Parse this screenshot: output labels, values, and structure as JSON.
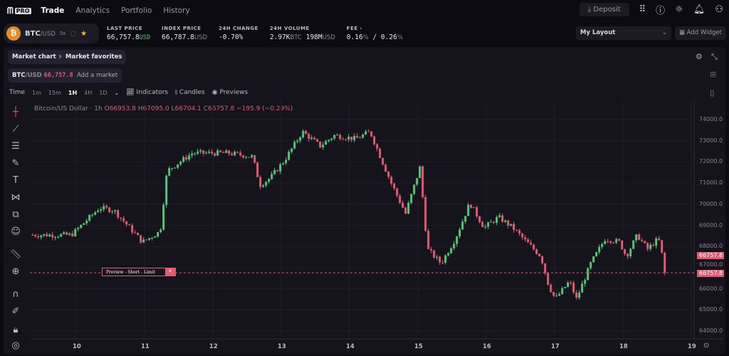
{
  "nav": {
    "logo": "PRO",
    "items": [
      "Trade",
      "Analytics",
      "Portfolio",
      "History"
    ],
    "deposit": "Deposit"
  },
  "ticker": {
    "pair_base": "BTC",
    "pair_quote": "/USD",
    "leverage": "5x"
  },
  "stats": {
    "last_price_label": "LAST PRICE",
    "last_price": "66,757.8",
    "index_label": "INDEX PRICE",
    "index_price": "66,787.8",
    "change_label": "24H CHANGE",
    "change": "-0.70",
    "volume_label": "24H VOLUME",
    "vol_btc": "2.97K",
    "vol_usd": "198M",
    "fee_label": "FEE",
    "fee_maker": "0.16",
    "fee_taker": "0.26",
    "usd": "USD",
    "btc": "BTC",
    "pct": "%"
  },
  "layout": {
    "selected": "My Layout",
    "add_widget": "Add Widget"
  },
  "tabs": {
    "market_chart": "Market chart",
    "market_favorites": "Market favorites",
    "market_base": "BTC",
    "market_quote": "/USD",
    "market_price": "66,757.8",
    "add_market": "Add a market"
  },
  "toolbar": {
    "time": "Time",
    "intervals": [
      "1m",
      "15m",
      "1H",
      "4H",
      "1D"
    ],
    "active_interval": "1H",
    "indicators": "Indicators",
    "candles": "Candles",
    "previews": "Previews"
  },
  "legend": {
    "title": "Bitcoin/US Dollar · 1h",
    "o": "66953.8",
    "h": "67095.0",
    "l": "66704.1",
    "c": "66757.8",
    "chg": "−195.9 (−0.29%)"
  },
  "preview": {
    "label": "Preview - Short - Limit",
    "close": "x"
  },
  "colors": {
    "up": "#58c47a",
    "down": "#e35a72",
    "bg": "#15131c"
  },
  "chart_data": {
    "type": "candlestick",
    "title": "Bitcoin/US Dollar · 1h",
    "x_ticks": [
      "10",
      "11",
      "12",
      "13",
      "14",
      "15",
      "16",
      "17",
      "18",
      "19"
    ],
    "y_ticks": [
      "74000.0",
      "73000.0",
      "72000.0",
      "71000.0",
      "70000.0",
      "69000.0",
      "68000.0",
      "67000.0",
      "66000.0",
      "65000.0",
      "64000.0"
    ],
    "ylim": [
      63900,
      74600
    ],
    "last_price": "66757.8",
    "last_price_2": "66757.8",
    "close_path_day_price": [
      [
        9.32,
        68545
      ],
      [
        9.93,
        68545
      ],
      [
        10.34,
        69825
      ],
      [
        10.55,
        69724
      ],
      [
        10.97,
        68209
      ],
      [
        11.23,
        68714
      ],
      [
        11.33,
        71576
      ],
      [
        11.7,
        72418
      ],
      [
        12.22,
        72418
      ],
      [
        12.58,
        72249
      ],
      [
        12.69,
        70902
      ],
      [
        12.84,
        71239
      ],
      [
        13.05,
        72081
      ],
      [
        13.31,
        73428
      ],
      [
        13.57,
        72754
      ],
      [
        13.78,
        73259
      ],
      [
        14.09,
        73091
      ],
      [
        14.3,
        73428
      ],
      [
        14.61,
        71000
      ],
      [
        14.82,
        69556
      ],
      [
        15.03,
        71744
      ],
      [
        15.14,
        67872
      ],
      [
        15.34,
        67199
      ],
      [
        15.55,
        68377
      ],
      [
        15.76,
        70061
      ],
      [
        15.97,
        68882
      ],
      [
        16.18,
        69387
      ],
      [
        16.39,
        68882
      ],
      [
        16.59,
        68209
      ],
      [
        16.8,
        67535
      ],
      [
        16.91,
        66188
      ],
      [
        17.01,
        65515
      ],
      [
        17.22,
        66357
      ],
      [
        17.32,
        65515
      ],
      [
        17.53,
        67199
      ],
      [
        17.74,
        68377
      ],
      [
        17.95,
        68209
      ],
      [
        18.05,
        67535
      ],
      [
        18.21,
        68545
      ],
      [
        18.36,
        67872
      ],
      [
        18.52,
        68377
      ],
      [
        18.63,
        66758
      ]
    ]
  }
}
